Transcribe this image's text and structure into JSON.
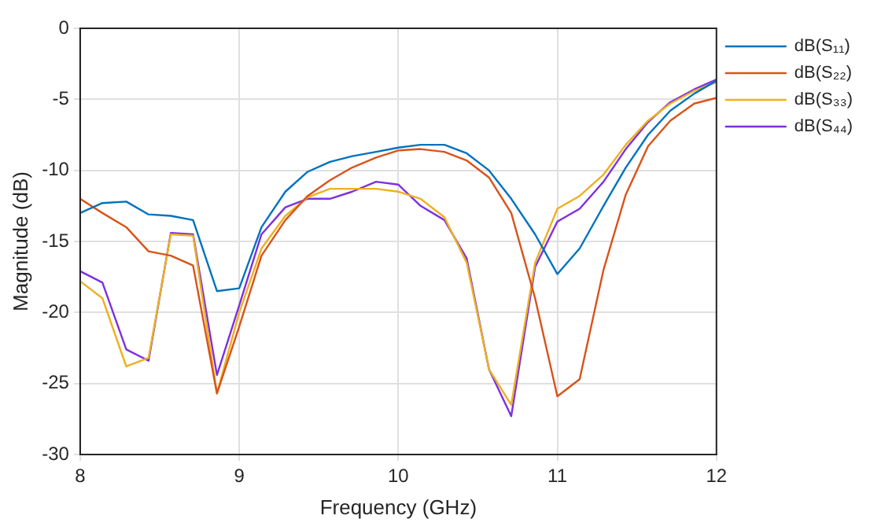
{
  "chart_data": {
    "type": "line",
    "xlabel": "Frequency (GHz)",
    "ylabel": "Magnitude (dB)",
    "x": [
      8,
      8.14,
      8.29,
      8.43,
      8.57,
      8.71,
      8.86,
      9,
      9.14,
      9.29,
      9.43,
      9.57,
      9.71,
      9.86,
      10,
      10.14,
      10.29,
      10.43,
      10.57,
      10.71,
      10.86,
      11,
      11.14,
      11.29,
      11.43,
      11.57,
      11.71,
      11.86,
      12
    ],
    "xlim": [
      8,
      12
    ],
    "xticks": [
      8,
      9,
      10,
      11,
      12
    ],
    "ylim": [
      -30,
      0
    ],
    "yticks": [
      -30,
      -25,
      -20,
      -15,
      -10,
      -5,
      0
    ],
    "grid": true,
    "legend": "top right",
    "marker": "none",
    "line_style": "solid",
    "series": [
      {
        "name": "dB(S₁₁)",
        "color": "#0072bd",
        "values": [
          -13,
          -12.3,
          -12.2,
          -13.1,
          -13.2,
          -13.5,
          -18.5,
          -18.3,
          -14,
          -11.5,
          -10.1,
          -9.4,
          -9,
          -8.7,
          -8.4,
          -8.2,
          -8.2,
          -8.8,
          -10,
          -12,
          -14.5,
          -17.3,
          -15.5,
          -12.5,
          -9.8,
          -7.5,
          -5.8,
          -4.6,
          -3.7
        ]
      },
      {
        "name": "dB(S₂₂)",
        "color": "#d95319",
        "values": [
          -12,
          -13,
          -14,
          -15.7,
          -16,
          -16.7,
          -25.7,
          -21,
          -16,
          -13.5,
          -11.8,
          -10.7,
          -9.8,
          -9.1,
          -8.6,
          -8.5,
          -8.7,
          -9.3,
          -10.5,
          -13,
          -19,
          -25.9,
          -24.7,
          -17,
          -11.7,
          -8.3,
          -6.5,
          -5.3,
          -4.9
        ]
      },
      {
        "name": "dB(S₃₃)",
        "color": "#edb120",
        "values": [
          -17.8,
          -19,
          -23.8,
          -23.2,
          -14.5,
          -14.6,
          -25.7,
          -20,
          -15.5,
          -13.2,
          -11.9,
          -11.3,
          -11.3,
          -11.3,
          -11.5,
          -12,
          -13.3,
          -16.5,
          -24,
          -26.5,
          -16.5,
          -12.7,
          -11.8,
          -10.3,
          -8.2,
          -6.5,
          -5.3,
          -4.4,
          -3.8
        ]
      },
      {
        "name": "dB(S₄₄)",
        "color": "#7e2fdf",
        "values": [
          -17.1,
          -17.9,
          -22.6,
          -23.4,
          -14.4,
          -14.5,
          -24.4,
          -19.5,
          -14.5,
          -12.6,
          -12,
          -12,
          -11.5,
          -10.8,
          -11,
          -12.5,
          -13.5,
          -16.2,
          -24,
          -27.3,
          -16.8,
          -13.6,
          -12.7,
          -10.8,
          -8.5,
          -6.6,
          -5.2,
          -4.3,
          -3.6
        ]
      }
    ]
  }
}
